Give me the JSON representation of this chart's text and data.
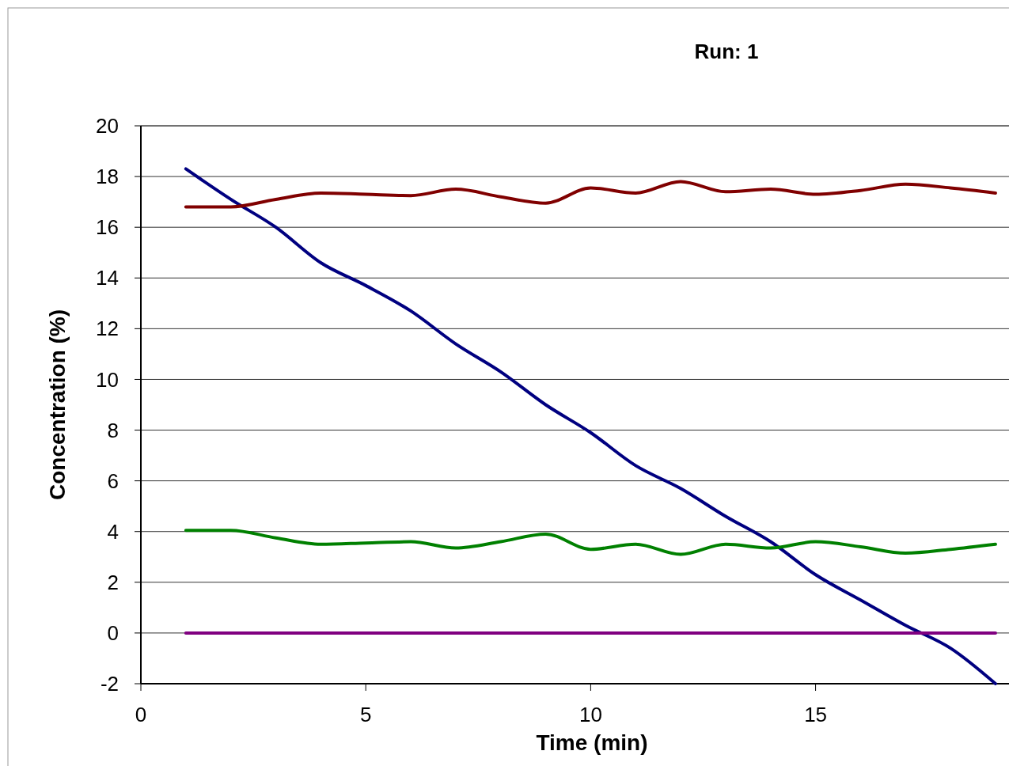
{
  "chart_data": {
    "type": "line",
    "title": "Run: 1",
    "xlabel": "Time (min)",
    "ylabel": "Concentration (%)",
    "x": [
      1,
      2,
      3,
      4,
      5,
      6,
      7,
      8,
      9,
      10,
      11,
      12,
      13,
      14,
      15,
      16,
      17,
      18,
      19
    ],
    "series": [
      {
        "color": "#000080",
        "values": [
          18.3,
          17.1,
          16.0,
          14.6,
          13.7,
          12.7,
          11.4,
          10.3,
          9.0,
          7.9,
          6.6,
          5.7,
          4.6,
          3.6,
          2.3,
          1.3,
          0.3,
          -0.6,
          -2.0
        ]
      },
      {
        "color": "#800000",
        "values": [
          16.8,
          16.8,
          17.1,
          17.35,
          17.3,
          17.25,
          17.5,
          17.2,
          16.95,
          17.55,
          17.35,
          17.8,
          17.4,
          17.5,
          17.3,
          17.45,
          17.7,
          17.55,
          17.35
        ]
      },
      {
        "color": "#008000",
        "values": [
          4.05,
          4.05,
          3.75,
          3.5,
          3.55,
          3.6,
          3.35,
          3.6,
          3.9,
          3.3,
          3.5,
          3.1,
          3.5,
          3.35,
          3.6,
          3.4,
          3.15,
          3.3,
          3.5
        ]
      },
      {
        "color": "#800080",
        "values": [
          0,
          0,
          0,
          0,
          0,
          0,
          0,
          0,
          0,
          0,
          0,
          0,
          0,
          0,
          0,
          0,
          0,
          0,
          0
        ]
      }
    ],
    "xlim": [
      0,
      19.3
    ],
    "xticks": [
      0,
      5,
      10,
      15
    ],
    "ylim": [
      -2,
      20
    ],
    "yticks": [
      -2,
      0,
      2,
      4,
      6,
      8,
      10,
      12,
      14,
      16,
      18,
      20
    ],
    "grid": "y",
    "marker": "none",
    "line_style": "solid"
  }
}
